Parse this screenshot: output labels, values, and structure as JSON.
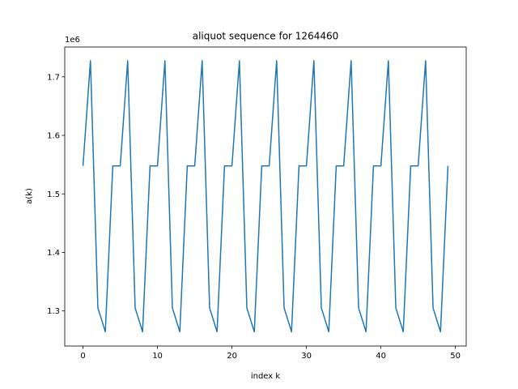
{
  "chart_data": {
    "type": "line",
    "title": "aliquot sequence for 1264460",
    "xlabel": "index k",
    "ylabel": "a(k)",
    "y_multiplier": "1e6",
    "xlim": [
      -2.45,
      51.45
    ],
    "ylim": [
      1240000,
      1751000
    ],
    "xticks": [
      0,
      10,
      20,
      30,
      40,
      50
    ],
    "yticks": [
      1.3,
      1.4,
      1.5,
      1.6,
      1.7
    ],
    "grid": false,
    "series": [
      {
        "color": "#1f77b4",
        "x": [
          0,
          1,
          2,
          3,
          4,
          5,
          6,
          7,
          8,
          9,
          10,
          11,
          12,
          13,
          14,
          15,
          16,
          17,
          18,
          19,
          20,
          21,
          22,
          23,
          24,
          25,
          26,
          27,
          28,
          29,
          30,
          31,
          32,
          33,
          34,
          35,
          36,
          37,
          38,
          39,
          40,
          41,
          42,
          43,
          44,
          45,
          46,
          47,
          48,
          49
        ],
        "values": [
          1547860,
          1727636,
          1305184,
          1264460,
          1547860,
          1547860,
          1727636,
          1305184,
          1264460,
          1547860,
          1547860,
          1727636,
          1305184,
          1264460,
          1547860,
          1547860,
          1727636,
          1305184,
          1264460,
          1547860,
          1547860,
          1727636,
          1305184,
          1264460,
          1547860,
          1547860,
          1727636,
          1305184,
          1264460,
          1547860,
          1547860,
          1727636,
          1305184,
          1264460,
          1547860,
          1547860,
          1727636,
          1305184,
          1264460,
          1547860,
          1547860,
          1727636,
          1305184,
          1264460,
          1547860,
          1547860,
          1727636,
          1305184,
          1264460,
          1547860
        ]
      }
    ]
  }
}
